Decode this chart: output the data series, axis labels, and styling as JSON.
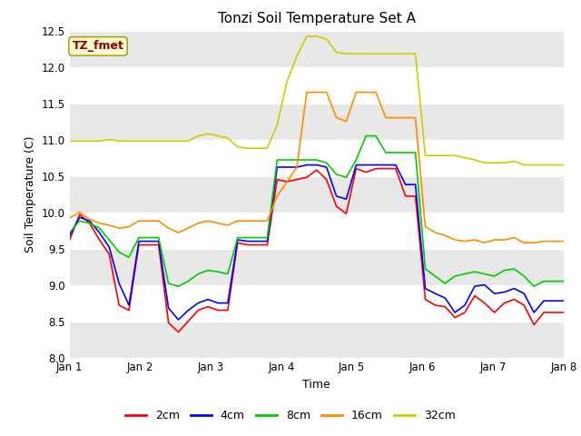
{
  "title": "Tonzi Soil Temperature Set A",
  "xlabel": "Time",
  "ylabel": "Soil Temperature (C)",
  "ylim": [
    8.0,
    12.5
  ],
  "xlim": [
    0,
    7
  ],
  "xtick_positions": [
    0,
    1,
    2,
    3,
    4,
    5,
    6,
    7
  ],
  "xtick_labels": [
    "Jan 1",
    "Jan 2",
    "Jan 3",
    "Jan 4",
    "Jan 5",
    "Jan 6",
    "Jan 7",
    "Jan 8"
  ],
  "ytick_positions": [
    8.0,
    8.5,
    9.0,
    9.5,
    10.0,
    10.5,
    11.0,
    11.5,
    12.0,
    12.5
  ],
  "annotation_text": "TZ_fmet",
  "annotation_color": "#8B0000",
  "annotation_bg": "#FFFACD",
  "annotation_edge": "#999900",
  "fig_bg": "#FFFFFF",
  "plot_bg_light": "#FFFFFF",
  "plot_bg_dark": "#E8E8E8",
  "colors": {
    "2cm": "#FF0000",
    "4cm": "#0000FF",
    "8cm": "#00CC00",
    "16cm": "#FF8C00",
    "32cm": "#CCCC00"
  },
  "series_2cm": [
    9.62,
    9.97,
    9.85,
    9.62,
    9.42,
    8.72,
    8.65,
    9.55,
    9.55,
    9.55,
    8.48,
    8.35,
    8.5,
    8.65,
    8.7,
    8.65,
    8.65,
    9.58,
    9.55,
    9.55,
    9.55,
    10.45,
    10.42,
    10.45,
    10.48,
    10.58,
    10.45,
    10.08,
    9.98,
    10.6,
    10.55,
    10.6,
    10.6,
    10.6,
    10.22,
    10.22,
    8.8,
    8.72,
    8.7,
    8.55,
    8.62,
    8.85,
    8.75,
    8.62,
    8.75,
    8.8,
    8.72,
    8.45,
    8.62,
    8.62,
    8.62
  ],
  "series_4cm": [
    9.68,
    9.93,
    9.88,
    9.72,
    9.52,
    9.02,
    8.72,
    9.6,
    9.6,
    9.6,
    8.68,
    8.52,
    8.65,
    8.75,
    8.8,
    8.75,
    8.75,
    9.62,
    9.6,
    9.6,
    9.6,
    10.62,
    10.62,
    10.62,
    10.65,
    10.65,
    10.62,
    10.22,
    10.18,
    10.65,
    10.65,
    10.65,
    10.65,
    10.65,
    10.38,
    10.38,
    8.95,
    8.88,
    8.82,
    8.62,
    8.72,
    8.98,
    9.0,
    8.88,
    8.9,
    8.95,
    8.88,
    8.62,
    8.78,
    8.78,
    8.78
  ],
  "series_8cm": [
    9.72,
    9.88,
    9.85,
    9.78,
    9.62,
    9.45,
    9.38,
    9.65,
    9.65,
    9.65,
    9.02,
    8.98,
    9.05,
    9.15,
    9.2,
    9.18,
    9.15,
    9.65,
    9.65,
    9.65,
    9.65,
    10.72,
    10.72,
    10.72,
    10.72,
    10.72,
    10.68,
    10.52,
    10.48,
    10.72,
    11.05,
    11.05,
    10.82,
    10.82,
    10.82,
    10.82,
    9.22,
    9.12,
    9.02,
    9.12,
    9.15,
    9.18,
    9.15,
    9.12,
    9.2,
    9.22,
    9.12,
    8.98,
    9.05,
    9.05,
    9.05
  ],
  "series_16cm": [
    9.92,
    10.0,
    9.9,
    9.85,
    9.82,
    9.78,
    9.8,
    9.88,
    9.88,
    9.88,
    9.78,
    9.72,
    9.78,
    9.85,
    9.88,
    9.85,
    9.82,
    9.88,
    9.88,
    9.88,
    9.88,
    10.22,
    10.42,
    10.62,
    11.65,
    11.65,
    11.65,
    11.3,
    11.25,
    11.65,
    11.65,
    11.65,
    11.3,
    11.3,
    11.3,
    11.3,
    9.8,
    9.72,
    9.68,
    9.62,
    9.6,
    9.62,
    9.58,
    9.62,
    9.62,
    9.65,
    9.58,
    9.58,
    9.6,
    9.6,
    9.6
  ],
  "series_32cm": [
    10.98,
    10.98,
    10.98,
    10.98,
    11.0,
    10.98,
    10.98,
    10.98,
    10.98,
    10.98,
    10.98,
    10.98,
    10.98,
    11.05,
    11.08,
    11.05,
    11.02,
    10.9,
    10.88,
    10.88,
    10.88,
    11.2,
    11.8,
    12.15,
    12.42,
    12.42,
    12.38,
    12.2,
    12.18,
    12.18,
    12.18,
    12.18,
    12.18,
    12.18,
    12.18,
    12.18,
    10.78,
    10.78,
    10.78,
    10.78,
    10.75,
    10.72,
    10.68,
    10.68,
    10.68,
    10.7,
    10.65,
    10.65,
    10.65,
    10.65,
    10.65
  ]
}
